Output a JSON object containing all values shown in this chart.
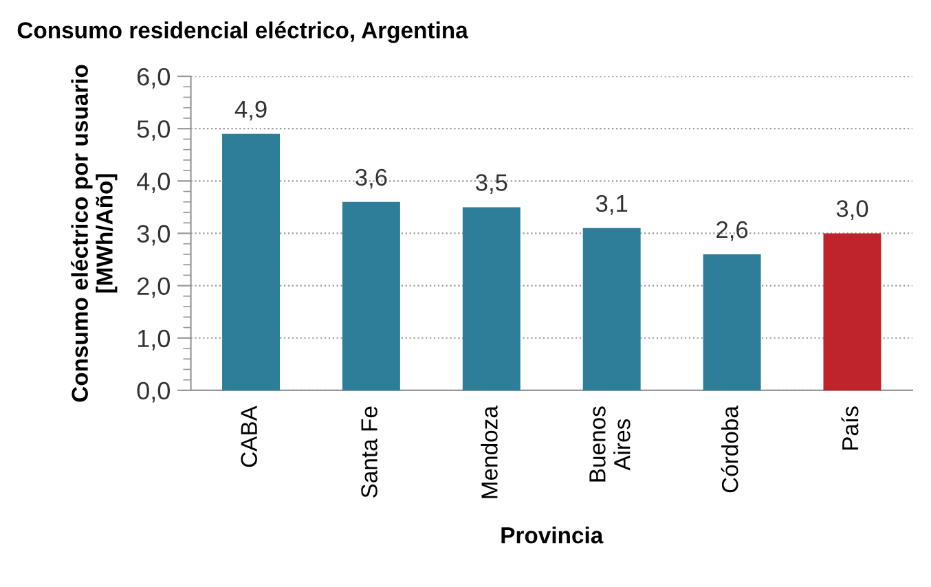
{
  "chart_data": {
    "type": "bar",
    "title": "Consumo residencial eléctrico, Argentina",
    "xlabel": "Provincia",
    "ylabel": "Consumo eléctrico por usuario\n[MWh/Año]",
    "categories": [
      "CABA",
      "Santa Fe",
      "Mendoza",
      "Buenos\nAires",
      "Córdoba",
      "País"
    ],
    "values": [
      4.9,
      3.6,
      3.5,
      3.1,
      2.6,
      3.0
    ],
    "colors": [
      "#2e7e99",
      "#2e7e99",
      "#2e7e99",
      "#2e7e99",
      "#2e7e99",
      "#c0242b"
    ],
    "value_labels": [
      "4,9",
      "3,6",
      "3,5",
      "3,1",
      "2,6",
      "3,0"
    ],
    "ylim": [
      0,
      6
    ],
    "yticks": [
      {
        "value": 0,
        "label": "0,0"
      },
      {
        "value": 1,
        "label": "1,0"
      },
      {
        "value": 2,
        "label": "2,0"
      },
      {
        "value": 3,
        "label": "3,0"
      },
      {
        "value": 4,
        "label": "4,0"
      },
      {
        "value": 5,
        "label": "5,0"
      },
      {
        "value": 6,
        "label": "6,0"
      }
    ],
    "grid": "y",
    "legend": false
  }
}
